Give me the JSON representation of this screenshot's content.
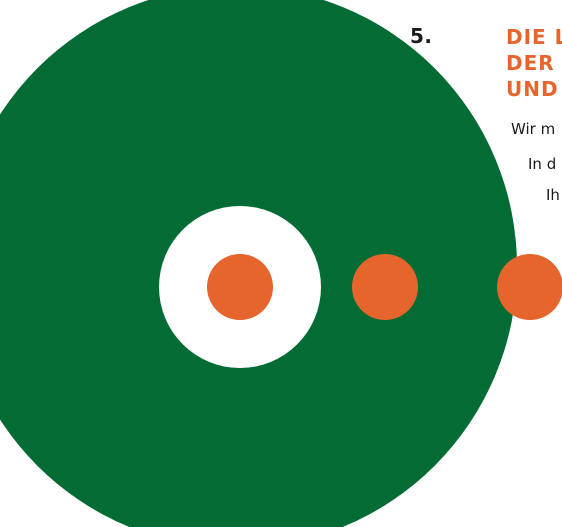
{
  "step": {
    "number": "5."
  },
  "heading": {
    "lines": [
      "DIE L",
      "DER",
      "UND"
    ]
  },
  "body": {
    "lines": [
      "Wir m",
      "In d",
      "Ih"
    ]
  },
  "colors": {
    "green": "#036c35",
    "orange": "#e6652d",
    "white": "#ffffff",
    "text": "#1a1a1a"
  }
}
